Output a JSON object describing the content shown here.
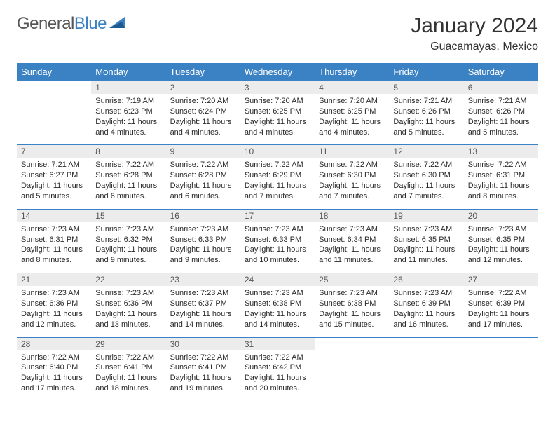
{
  "logo": {
    "text1": "General",
    "text2": "Blue"
  },
  "title": "January 2024",
  "location": "Guacamayas, Mexico",
  "colors": {
    "header_bg": "#3b82c4",
    "header_fg": "#ffffff",
    "daynum_bg": "#ececec",
    "border": "#3b82c4",
    "text": "#2a2a2a",
    "logo_gray": "#555555",
    "logo_blue": "#3b82c4"
  },
  "layout": {
    "first_weekday_offset": 1,
    "days_in_month": 31,
    "columns": 7
  },
  "weekdays": [
    "Sunday",
    "Monday",
    "Tuesday",
    "Wednesday",
    "Thursday",
    "Friday",
    "Saturday"
  ],
  "days": [
    {
      "n": 1,
      "sunrise": "7:19 AM",
      "sunset": "6:23 PM",
      "daylight": "11 hours and 4 minutes."
    },
    {
      "n": 2,
      "sunrise": "7:20 AM",
      "sunset": "6:24 PM",
      "daylight": "11 hours and 4 minutes."
    },
    {
      "n": 3,
      "sunrise": "7:20 AM",
      "sunset": "6:25 PM",
      "daylight": "11 hours and 4 minutes."
    },
    {
      "n": 4,
      "sunrise": "7:20 AM",
      "sunset": "6:25 PM",
      "daylight": "11 hours and 4 minutes."
    },
    {
      "n": 5,
      "sunrise": "7:21 AM",
      "sunset": "6:26 PM",
      "daylight": "11 hours and 5 minutes."
    },
    {
      "n": 6,
      "sunrise": "7:21 AM",
      "sunset": "6:26 PM",
      "daylight": "11 hours and 5 minutes."
    },
    {
      "n": 7,
      "sunrise": "7:21 AM",
      "sunset": "6:27 PM",
      "daylight": "11 hours and 5 minutes."
    },
    {
      "n": 8,
      "sunrise": "7:22 AM",
      "sunset": "6:28 PM",
      "daylight": "11 hours and 6 minutes."
    },
    {
      "n": 9,
      "sunrise": "7:22 AM",
      "sunset": "6:28 PM",
      "daylight": "11 hours and 6 minutes."
    },
    {
      "n": 10,
      "sunrise": "7:22 AM",
      "sunset": "6:29 PM",
      "daylight": "11 hours and 7 minutes."
    },
    {
      "n": 11,
      "sunrise": "7:22 AM",
      "sunset": "6:30 PM",
      "daylight": "11 hours and 7 minutes."
    },
    {
      "n": 12,
      "sunrise": "7:22 AM",
      "sunset": "6:30 PM",
      "daylight": "11 hours and 7 minutes."
    },
    {
      "n": 13,
      "sunrise": "7:22 AM",
      "sunset": "6:31 PM",
      "daylight": "11 hours and 8 minutes."
    },
    {
      "n": 14,
      "sunrise": "7:23 AM",
      "sunset": "6:31 PM",
      "daylight": "11 hours and 8 minutes."
    },
    {
      "n": 15,
      "sunrise": "7:23 AM",
      "sunset": "6:32 PM",
      "daylight": "11 hours and 9 minutes."
    },
    {
      "n": 16,
      "sunrise": "7:23 AM",
      "sunset": "6:33 PM",
      "daylight": "11 hours and 9 minutes."
    },
    {
      "n": 17,
      "sunrise": "7:23 AM",
      "sunset": "6:33 PM",
      "daylight": "11 hours and 10 minutes."
    },
    {
      "n": 18,
      "sunrise": "7:23 AM",
      "sunset": "6:34 PM",
      "daylight": "11 hours and 11 minutes."
    },
    {
      "n": 19,
      "sunrise": "7:23 AM",
      "sunset": "6:35 PM",
      "daylight": "11 hours and 11 minutes."
    },
    {
      "n": 20,
      "sunrise": "7:23 AM",
      "sunset": "6:35 PM",
      "daylight": "11 hours and 12 minutes."
    },
    {
      "n": 21,
      "sunrise": "7:23 AM",
      "sunset": "6:36 PM",
      "daylight": "11 hours and 12 minutes."
    },
    {
      "n": 22,
      "sunrise": "7:23 AM",
      "sunset": "6:36 PM",
      "daylight": "11 hours and 13 minutes."
    },
    {
      "n": 23,
      "sunrise": "7:23 AM",
      "sunset": "6:37 PM",
      "daylight": "11 hours and 14 minutes."
    },
    {
      "n": 24,
      "sunrise": "7:23 AM",
      "sunset": "6:38 PM",
      "daylight": "11 hours and 14 minutes."
    },
    {
      "n": 25,
      "sunrise": "7:23 AM",
      "sunset": "6:38 PM",
      "daylight": "11 hours and 15 minutes."
    },
    {
      "n": 26,
      "sunrise": "7:23 AM",
      "sunset": "6:39 PM",
      "daylight": "11 hours and 16 minutes."
    },
    {
      "n": 27,
      "sunrise": "7:22 AM",
      "sunset": "6:39 PM",
      "daylight": "11 hours and 17 minutes."
    },
    {
      "n": 28,
      "sunrise": "7:22 AM",
      "sunset": "6:40 PM",
      "daylight": "11 hours and 17 minutes."
    },
    {
      "n": 29,
      "sunrise": "7:22 AM",
      "sunset": "6:41 PM",
      "daylight": "11 hours and 18 minutes."
    },
    {
      "n": 30,
      "sunrise": "7:22 AM",
      "sunset": "6:41 PM",
      "daylight": "11 hours and 19 minutes."
    },
    {
      "n": 31,
      "sunrise": "7:22 AM",
      "sunset": "6:42 PM",
      "daylight": "11 hours and 20 minutes."
    }
  ],
  "labels": {
    "sunrise": "Sunrise:",
    "sunset": "Sunset:",
    "daylight": "Daylight:"
  }
}
